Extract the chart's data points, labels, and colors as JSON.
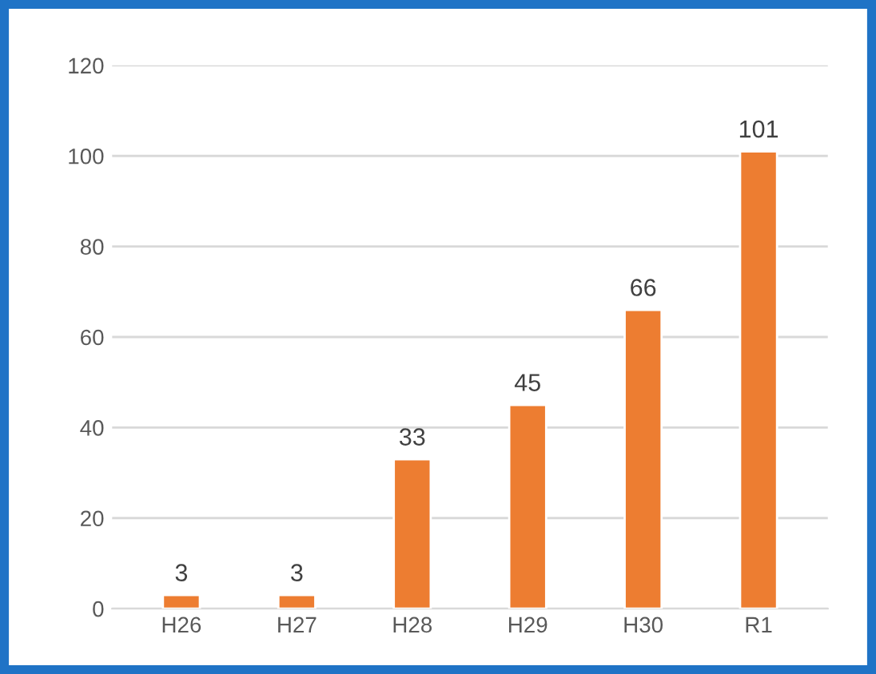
{
  "chart_data": {
    "type": "bar",
    "categories": [
      "H26",
      "H27",
      "H28",
      "H29",
      "H30",
      "R1"
    ],
    "values": [
      3,
      3,
      33,
      45,
      66,
      101
    ],
    "color": "#ed7d31",
    "ylim": [
      0,
      120
    ],
    "yticks": [
      0,
      20,
      40,
      60,
      80,
      100,
      120
    ],
    "grid": "y",
    "data_labels": true
  }
}
